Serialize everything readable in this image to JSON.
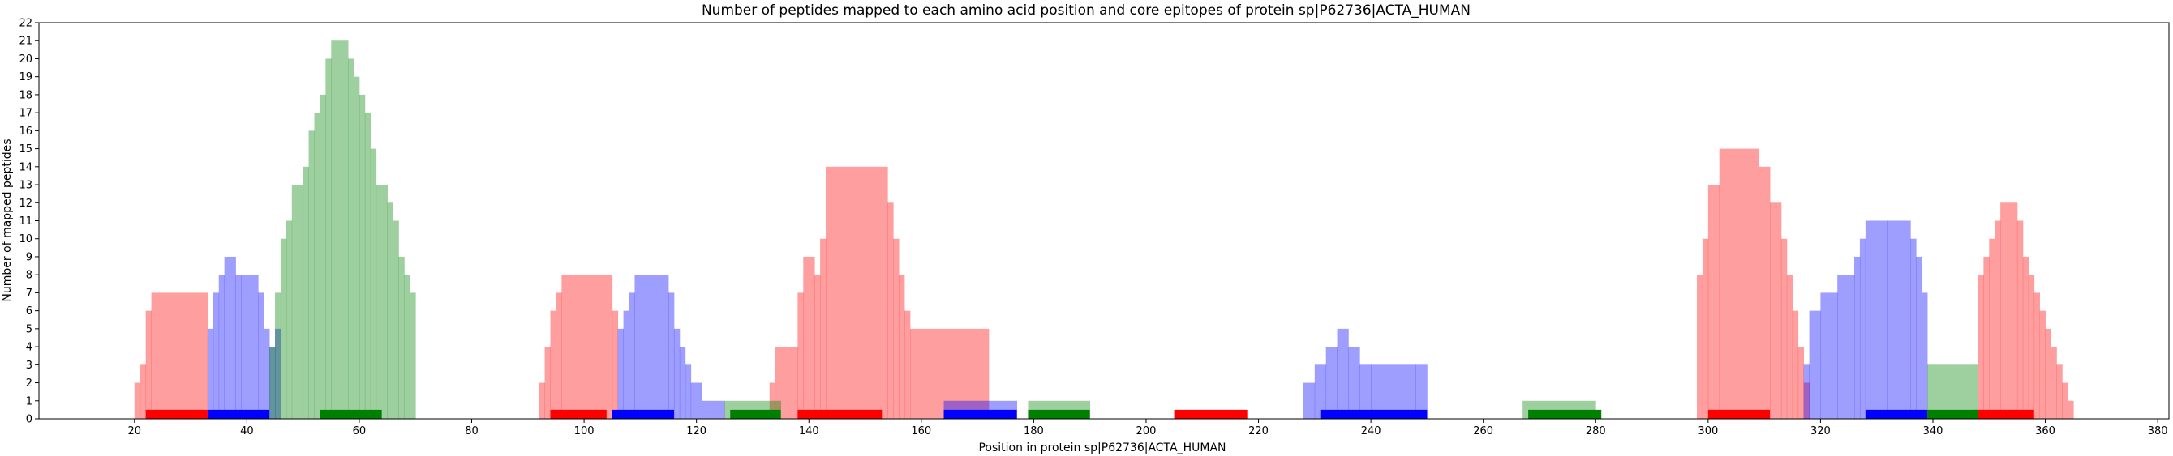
{
  "chart_data": {
    "type": "bar",
    "title": "Number of peptides mapped to each amino acid position and core epitopes of protein sp|P62736|ACTA_HUMAN",
    "xlabel": "Position in protein sp|P62736|ACTA_HUMAN",
    "ylabel": "Number of mapped peptides",
    "xlim": [
      3,
      382
    ],
    "ylim": [
      0,
      22
    ],
    "xticks": [
      20,
      40,
      60,
      80,
      100,
      120,
      140,
      160,
      180,
      200,
      220,
      240,
      260,
      280,
      300,
      320,
      340,
      360,
      380
    ],
    "yticks": [
      0,
      1,
      2,
      3,
      4,
      5,
      6,
      7,
      8,
      9,
      10,
      11,
      12,
      13,
      14,
      15,
      16,
      17,
      18,
      19,
      20,
      21,
      22
    ],
    "grid": false,
    "legend": "none",
    "colors": {
      "red": "#ff0000",
      "blue": "#0000ff",
      "green": "#008000",
      "fill_opacity": 0.38
    },
    "series": [
      {
        "color": "red",
        "steps": [
          [
            20,
            21,
            2
          ],
          [
            21,
            22,
            3
          ],
          [
            22,
            23,
            6
          ],
          [
            23,
            33,
            7
          ],
          [
            92,
            93,
            2
          ],
          [
            93,
            94,
            4
          ],
          [
            94,
            95,
            6
          ],
          [
            95,
            96,
            7
          ],
          [
            96,
            105,
            8
          ],
          [
            105,
            106,
            6
          ],
          [
            133,
            134,
            2
          ],
          [
            134,
            138,
            4
          ],
          [
            138,
            139,
            7
          ],
          [
            139,
            141,
            9
          ],
          [
            141,
            142,
            8
          ],
          [
            142,
            143,
            10
          ],
          [
            143,
            154,
            14
          ],
          [
            154,
            155,
            12
          ],
          [
            155,
            156,
            10
          ],
          [
            156,
            157,
            8
          ],
          [
            157,
            158,
            6
          ],
          [
            158,
            172,
            5
          ],
          [
            298,
            299,
            8
          ],
          [
            299,
            300,
            10
          ],
          [
            300,
            302,
            13
          ],
          [
            302,
            309,
            15
          ],
          [
            309,
            311,
            14
          ],
          [
            311,
            313,
            12
          ],
          [
            313,
            314,
            10
          ],
          [
            314,
            315,
            8
          ],
          [
            315,
            316,
            6
          ],
          [
            316,
            317,
            4
          ],
          [
            317,
            318,
            2
          ],
          [
            348,
            349,
            8
          ],
          [
            349,
            350,
            9
          ],
          [
            350,
            351,
            10
          ],
          [
            351,
            352,
            11
          ],
          [
            352,
            355,
            12
          ],
          [
            355,
            356,
            11
          ],
          [
            356,
            357,
            9
          ],
          [
            357,
            358,
            8
          ],
          [
            358,
            359,
            7
          ],
          [
            359,
            360,
            6
          ],
          [
            360,
            361,
            5
          ],
          [
            361,
            362,
            4
          ],
          [
            362,
            363,
            3
          ],
          [
            363,
            364,
            2
          ],
          [
            364,
            365,
            1
          ]
        ]
      },
      {
        "color": "blue",
        "steps": [
          [
            33,
            34,
            5
          ],
          [
            34,
            35,
            7
          ],
          [
            35,
            36,
            8
          ],
          [
            36,
            38,
            9
          ],
          [
            38,
            39,
            8
          ],
          [
            39,
            42,
            8
          ],
          [
            42,
            43,
            7
          ],
          [
            43,
            44,
            5
          ],
          [
            44,
            45,
            4
          ],
          [
            45,
            46,
            5
          ],
          [
            106,
            107,
            5
          ],
          [
            107,
            108,
            6
          ],
          [
            108,
            109,
            7
          ],
          [
            109,
            115,
            8
          ],
          [
            115,
            116,
            7
          ],
          [
            116,
            117,
            5
          ],
          [
            117,
            118,
            4
          ],
          [
            118,
            119,
            3
          ],
          [
            119,
            121,
            2
          ],
          [
            121,
            125,
            1
          ],
          [
            164,
            177,
            1
          ],
          [
            228,
            230,
            2
          ],
          [
            230,
            232,
            3
          ],
          [
            232,
            234,
            4
          ],
          [
            234,
            236,
            5
          ],
          [
            236,
            238,
            4
          ],
          [
            238,
            240,
            3
          ],
          [
            240,
            248,
            3
          ],
          [
            248,
            250,
            3
          ],
          [
            317,
            318,
            3
          ],
          [
            318,
            320,
            6
          ],
          [
            320,
            323,
            7
          ],
          [
            323,
            326,
            8
          ],
          [
            326,
            327,
            9
          ],
          [
            327,
            328,
            10
          ],
          [
            328,
            332,
            11
          ],
          [
            332,
            336,
            11
          ],
          [
            336,
            337,
            10
          ],
          [
            337,
            338,
            9
          ],
          [
            338,
            339,
            7
          ]
        ]
      },
      {
        "color": "green",
        "steps": [
          [
            44,
            45,
            4
          ],
          [
            45,
            46,
            7
          ],
          [
            46,
            47,
            10
          ],
          [
            47,
            48,
            11
          ],
          [
            48,
            50,
            13
          ],
          [
            50,
            51,
            14
          ],
          [
            51,
            52,
            16
          ],
          [
            52,
            53,
            17
          ],
          [
            53,
            54,
            18
          ],
          [
            54,
            55,
            20
          ],
          [
            55,
            58,
            21
          ],
          [
            58,
            59,
            20
          ],
          [
            59,
            60,
            19
          ],
          [
            60,
            61,
            18
          ],
          [
            61,
            62,
            17
          ],
          [
            62,
            63,
            15
          ],
          [
            63,
            65,
            13
          ],
          [
            65,
            66,
            12
          ],
          [
            66,
            67,
            11
          ],
          [
            67,
            68,
            9
          ],
          [
            68,
            69,
            8
          ],
          [
            69,
            70,
            7
          ],
          [
            125,
            135,
            1
          ],
          [
            179,
            190,
            1
          ],
          [
            267,
            280,
            1
          ],
          [
            339,
            348,
            3
          ]
        ]
      }
    ],
    "epitopes": [
      {
        "color": "red",
        "start": 22,
        "end": 33
      },
      {
        "color": "red",
        "start": 94,
        "end": 104
      },
      {
        "color": "red",
        "start": 138,
        "end": 153
      },
      {
        "color": "red",
        "start": 205,
        "end": 218
      },
      {
        "color": "red",
        "start": 300,
        "end": 311
      },
      {
        "color": "red",
        "start": 347,
        "end": 358
      },
      {
        "color": "blue",
        "start": 33,
        "end": 44
      },
      {
        "color": "blue",
        "start": 105,
        "end": 116
      },
      {
        "color": "blue",
        "start": 164,
        "end": 177
      },
      {
        "color": "blue",
        "start": 231,
        "end": 250
      },
      {
        "color": "blue",
        "start": 328,
        "end": 339
      },
      {
        "color": "green",
        "start": 53,
        "end": 64
      },
      {
        "color": "green",
        "start": 126,
        "end": 135
      },
      {
        "color": "green",
        "start": 179,
        "end": 190
      },
      {
        "color": "green",
        "start": 268,
        "end": 281
      },
      {
        "color": "green",
        "start": 339,
        "end": 348
      }
    ],
    "epitope_height": 0.5
  }
}
